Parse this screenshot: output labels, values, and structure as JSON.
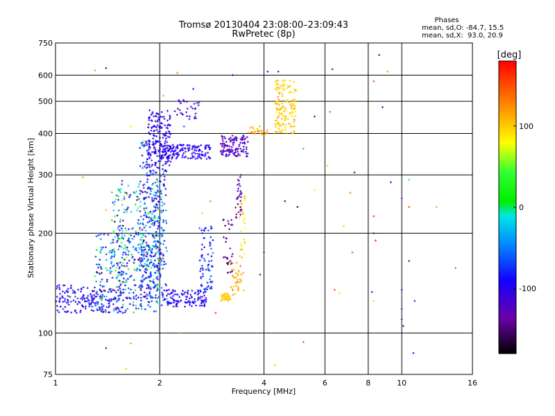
{
  "chart_data": {
    "type": "scatter",
    "title": "Tromsø 20130404 23:08:00–23:09:43",
    "subtitle": "RwPretec (8p)",
    "xlabel": "Frequency [MHz]",
    "ylabel": "Stationary phase Virtual Height [km]",
    "x_scale": "log",
    "y_scale": "log",
    "xlim": [
      1,
      16
    ],
    "ylim": [
      75,
      750
    ],
    "x_ticks": [
      1,
      2,
      4,
      6,
      8,
      10,
      16
    ],
    "x_tick_labels": [
      "1",
      "2",
      "4",
      "6",
      "8",
      "10",
      "16"
    ],
    "y_ticks": [
      75,
      100,
      200,
      300,
      400,
      500,
      600,
      750
    ],
    "y_tick_labels": [
      "75",
      "100",
      "200",
      "300",
      "400",
      "500",
      "600",
      "750"
    ],
    "grid": true,
    "phases": {
      "heading": "Phases",
      "line_o": "mean, sd,O: -84.7, 15.5",
      "line_x": "mean, sd,X:  93.0, 20.9"
    },
    "colorbar": {
      "label": "[deg]",
      "min": -180,
      "max": 180,
      "ticks": [
        100,
        0,
        -100
      ],
      "tick_labels": [
        "100",
        "0",
        "-100"
      ]
    },
    "clusters": [
      {
        "xmin": 1.0,
        "xmax": 1.6,
        "ymin": 115,
        "ymax": 140,
        "n": 180,
        "phase_mean": -95,
        "phase_sd": 25
      },
      {
        "xmin": 1.3,
        "xmax": 2.0,
        "ymin": 115,
        "ymax": 200,
        "n": 300,
        "phase_mean": -60,
        "phase_sd": 70
      },
      {
        "xmin": 1.45,
        "xmax": 2.05,
        "ymin": 150,
        "ymax": 290,
        "n": 250,
        "phase_mean": -40,
        "phase_sd": 90
      },
      {
        "xmin": 1.75,
        "xmax": 2.1,
        "ymin": 120,
        "ymax": 380,
        "n": 320,
        "phase_mean": -80,
        "phase_sd": 40
      },
      {
        "xmin": 1.85,
        "xmax": 2.15,
        "ymin": 320,
        "ymax": 470,
        "n": 150,
        "phase_mean": -100,
        "phase_sd": 15
      },
      {
        "xmin": 2.0,
        "xmax": 2.8,
        "ymin": 335,
        "ymax": 370,
        "n": 150,
        "phase_mean": -100,
        "phase_sd": 12
      },
      {
        "xmin": 2.1,
        "xmax": 2.75,
        "ymin": 120,
        "ymax": 135,
        "n": 110,
        "phase_mean": -95,
        "phase_sd": 15
      },
      {
        "xmin": 2.6,
        "xmax": 2.85,
        "ymin": 135,
        "ymax": 210,
        "n": 70,
        "phase_mean": -80,
        "phase_sd": 20
      },
      {
        "xmin": 2.2,
        "xmax": 2.65,
        "ymin": 440,
        "ymax": 505,
        "n": 30,
        "phase_mean": -110,
        "phase_sd": 12
      },
      {
        "xmin": 3.0,
        "xmax": 3.6,
        "ymin": 340,
        "ymax": 395,
        "n": 120,
        "phase_mean": -120,
        "phase_sd": 15
      },
      {
        "xmin": 3.0,
        "xmax": 3.2,
        "ymin": 125,
        "ymax": 132,
        "n": 40,
        "phase_mean": 100,
        "phase_sd": 12
      },
      {
        "xmin": 3.2,
        "xmax": 3.5,
        "ymin": 130,
        "ymax": 165,
        "n": 40,
        "phase_mean": 110,
        "phase_sd": 12
      },
      {
        "xmin": 3.4,
        "xmax": 3.55,
        "ymin": 165,
        "ymax": 260,
        "n": 30,
        "phase_mean": 90,
        "phase_sd": 20
      },
      {
        "xmin": 3.05,
        "xmax": 3.25,
        "ymin": 150,
        "ymax": 220,
        "n": 30,
        "phase_mean": -140,
        "phase_sd": 15
      },
      {
        "xmin": 3.3,
        "xmax": 3.45,
        "ymin": 220,
        "ymax": 300,
        "n": 30,
        "phase_mean": -130,
        "phase_sd": 15
      },
      {
        "xmin": 3.6,
        "xmax": 4.1,
        "ymin": 395,
        "ymax": 420,
        "n": 25,
        "phase_mean": 110,
        "phase_sd": 15
      },
      {
        "xmin": 4.3,
        "xmax": 4.95,
        "ymin": 400,
        "ymax": 580,
        "n": 150,
        "phase_mean": 100,
        "phase_sd": 15
      }
    ],
    "scattered_points": [
      [
        1.3,
        620,
        120
      ],
      [
        1.4,
        630,
        -120
      ],
      [
        2.25,
        610,
        130
      ],
      [
        2.5,
        545,
        -100
      ],
      [
        3.25,
        600,
        -100
      ],
      [
        4.1,
        615,
        -110
      ],
      [
        4.4,
        615,
        -140
      ],
      [
        6.3,
        625,
        -130
      ],
      [
        8.3,
        575,
        150
      ],
      [
        8.6,
        690,
        -130
      ],
      [
        9.1,
        615,
        120
      ],
      [
        8.8,
        480,
        -120
      ],
      [
        5.6,
        450,
        -140
      ],
      [
        6.2,
        465,
        140
      ],
      [
        5.2,
        360,
        20
      ],
      [
        6.1,
        320,
        100
      ],
      [
        7.3,
        305,
        -140
      ],
      [
        9.3,
        285,
        -100
      ],
      [
        10.5,
        290,
        30
      ],
      [
        5.6,
        270,
        80
      ],
      [
        7.1,
        265,
        130
      ],
      [
        10.0,
        255,
        -140
      ],
      [
        10.5,
        240,
        150
      ],
      [
        12.6,
        240,
        50
      ],
      [
        4.6,
        250,
        -160
      ],
      [
        5.0,
        240,
        -160
      ],
      [
        8.3,
        225,
        160
      ],
      [
        6.8,
        210,
        60
      ],
      [
        8.3,
        200,
        -120
      ],
      [
        8.4,
        190,
        170
      ],
      [
        4.0,
        175,
        -150
      ],
      [
        7.2,
        175,
        140
      ],
      [
        10.5,
        165,
        -140
      ],
      [
        14.3,
        157,
        140
      ],
      [
        3.9,
        150,
        -140
      ],
      [
        6.4,
        135,
        150
      ],
      [
        6.6,
        132,
        90
      ],
      [
        8.2,
        133,
        -100
      ],
      [
        10.0,
        135,
        -100
      ],
      [
        8.3,
        125,
        100
      ],
      [
        10.9,
        125,
        -140
      ],
      [
        10.0,
        118,
        -140
      ],
      [
        10.0,
        110,
        -140
      ],
      [
        10.1,
        105,
        -120
      ],
      [
        2.9,
        115,
        160
      ],
      [
        1.0,
        116,
        -120
      ],
      [
        1.4,
        90,
        -130
      ],
      [
        1.65,
        93,
        120
      ],
      [
        2.3,
        100,
        130
      ],
      [
        5.2,
        94,
        150
      ],
      [
        4.3,
        80,
        60
      ],
      [
        6.5,
        75,
        130
      ],
      [
        10.8,
        87,
        -110
      ],
      [
        1.6,
        78,
        100
      ],
      [
        1.2,
        295,
        120
      ],
      [
        1.4,
        235,
        110
      ],
      [
        1.65,
        420,
        90
      ],
      [
        1.8,
        380,
        70
      ],
      [
        2.05,
        520,
        40
      ],
      [
        2.35,
        420,
        -60
      ],
      [
        2.65,
        230,
        100
      ],
      [
        2.8,
        250,
        130
      ]
    ]
  }
}
